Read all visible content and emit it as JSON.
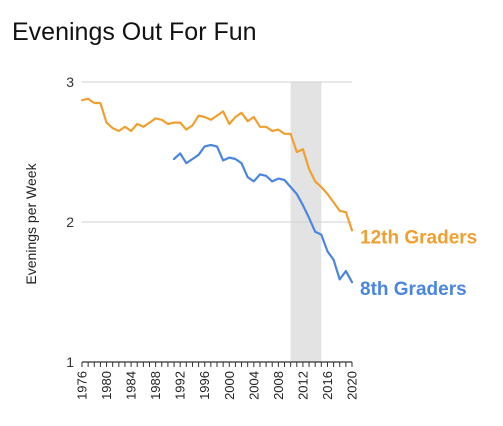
{
  "chart_data": {
    "type": "line",
    "title": "Evenings Out For Fun",
    "ylabel": "Evenings per Week",
    "xlabel": "",
    "xlim": [
      1976,
      2020
    ],
    "ylim": [
      1,
      3
    ],
    "y_ticks": [
      "1",
      "2",
      "3"
    ],
    "x_ticks": [
      "1976",
      "1980",
      "1984",
      "1988",
      "1992",
      "1996",
      "2000",
      "2004",
      "2008",
      "2012",
      "2016",
      "2020"
    ],
    "grid": "horizontal",
    "legend": "inline-right",
    "shaded_region": {
      "x_start": 2010,
      "x_end": 2015,
      "color": "#e3e3e3"
    },
    "series": [
      {
        "name": "12th Graders",
        "color": "#f0a030",
        "x": [
          1976,
          1977,
          1978,
          1979,
          1980,
          1981,
          1982,
          1983,
          1984,
          1985,
          1986,
          1987,
          1988,
          1989,
          1990,
          1991,
          1992,
          1993,
          1994,
          1995,
          1996,
          1997,
          1998,
          1999,
          2000,
          2001,
          2002,
          2003,
          2004,
          2005,
          2006,
          2007,
          2008,
          2009,
          2010,
          2011,
          2012,
          2013,
          2014,
          2015,
          2016,
          2017,
          2018,
          2019,
          2020
        ],
        "values": [
          2.87,
          2.88,
          2.85,
          2.85,
          2.71,
          2.67,
          2.65,
          2.68,
          2.65,
          2.7,
          2.68,
          2.71,
          2.74,
          2.73,
          2.7,
          2.71,
          2.71,
          2.66,
          2.69,
          2.76,
          2.75,
          2.73,
          2.76,
          2.79,
          2.7,
          2.75,
          2.78,
          2.72,
          2.75,
          2.68,
          2.68,
          2.65,
          2.66,
          2.63,
          2.63,
          2.5,
          2.52,
          2.38,
          2.29,
          2.25,
          2.2,
          2.14,
          2.08,
          2.07,
          1.94
        ]
      },
      {
        "name": "8th Graders",
        "color": "#4a86e0",
        "x": [
          1991,
          1992,
          1993,
          1994,
          1995,
          1996,
          1997,
          1998,
          1999,
          2000,
          2001,
          2002,
          2003,
          2004,
          2005,
          2006,
          2007,
          2008,
          2009,
          2010,
          2011,
          2012,
          2013,
          2014,
          2015,
          2016,
          2017,
          2018,
          2019,
          2020
        ],
        "values": [
          2.45,
          2.49,
          2.42,
          2.45,
          2.48,
          2.54,
          2.55,
          2.54,
          2.44,
          2.46,
          2.45,
          2.42,
          2.32,
          2.29,
          2.34,
          2.33,
          2.29,
          2.31,
          2.3,
          2.25,
          2.2,
          2.12,
          2.03,
          1.93,
          1.91,
          1.79,
          1.73,
          1.59,
          1.65,
          1.57
        ]
      }
    ]
  }
}
